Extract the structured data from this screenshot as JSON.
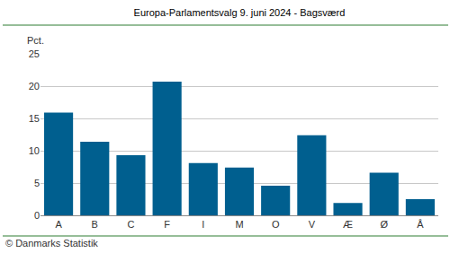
{
  "chart_data": {
    "type": "bar",
    "title": "Europa-Parlamentsvalg 9. juni 2024 - Bagsværd",
    "y_label": "Pct.",
    "source": "© Danmarks Statistik",
    "categories": [
      "A",
      "B",
      "C",
      "F",
      "I",
      "M",
      "O",
      "V",
      "Æ",
      "Ø",
      "Å"
    ],
    "values": [
      15.9,
      11.4,
      9.3,
      20.7,
      8.1,
      7.4,
      4.6,
      12.4,
      1.9,
      6.6,
      2.5
    ],
    "color": "#005f8f",
    "ylim": [
      0,
      25
    ],
    "yticks": [
      0,
      5,
      10,
      15,
      20,
      25
    ],
    "grid": true
  }
}
